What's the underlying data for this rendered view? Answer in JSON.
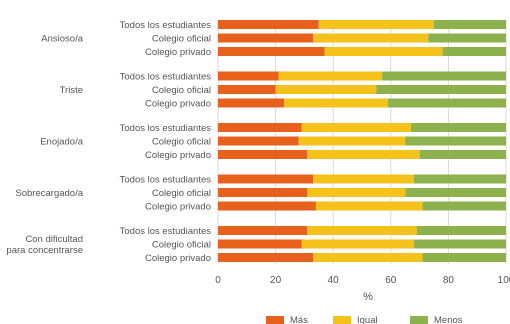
{
  "chart_data": {
    "type": "bar",
    "orientation": "horizontal",
    "stacked": true,
    "xlabel": "%",
    "xlim": [
      0,
      100
    ],
    "x_ticks": [
      "0",
      "20",
      "40",
      "60",
      "80",
      "100"
    ],
    "grid": true,
    "legend_position": "bottom",
    "colors": {
      "Más": "#E8611C",
      "Igual": "#F5C21B",
      "Menos": "#8DB14C"
    },
    "groups": [
      {
        "label": "Ansioso/a",
        "bars": [
          {
            "label": "Todos los estudiantes",
            "values": [
              35,
              40,
              25
            ]
          },
          {
            "label": "Colegio oficial",
            "values": [
              33,
              40,
              27
            ]
          },
          {
            "label": "Colegio privado",
            "values": [
              37,
              41,
              22
            ]
          }
        ]
      },
      {
        "label": "Triste",
        "bars": [
          {
            "label": "Todos los estudiantes",
            "values": [
              21,
              36,
              43
            ]
          },
          {
            "label": "Colegio oficial",
            "values": [
              20,
              35,
              45
            ]
          },
          {
            "label": "Colegio privado",
            "values": [
              23,
              36,
              41
            ]
          }
        ]
      },
      {
        "label": "Enojado/a",
        "bars": [
          {
            "label": "Todos los estudiantes",
            "values": [
              29,
              38,
              33
            ]
          },
          {
            "label": "Colegio oficial",
            "values": [
              28,
              37,
              35
            ]
          },
          {
            "label": "Colegio privado",
            "values": [
              31,
              39,
              30
            ]
          }
        ]
      },
      {
        "label": "Sobrecargado/a",
        "bars": [
          {
            "label": "Todos los estudiantes",
            "values": [
              33,
              35,
              32
            ]
          },
          {
            "label": "Colegio oficial",
            "values": [
              31,
              34,
              35
            ]
          },
          {
            "label": "Colegio privado",
            "values": [
              34,
              37,
              29
            ]
          }
        ]
      },
      {
        "label": "Con dificultad para concentrarse",
        "label_lines": [
          "Con dificultad",
          "para concentrarse"
        ],
        "bars": [
          {
            "label": "Todos los estudiantes",
            "values": [
              31,
              38,
              31
            ]
          },
          {
            "label": "Colegio oficial",
            "values": [
              29,
              39,
              32
            ]
          },
          {
            "label": "Colegio privado",
            "values": [
              33,
              38,
              29
            ]
          }
        ]
      }
    ],
    "series": [
      {
        "name": "Más"
      },
      {
        "name": "Igual"
      },
      {
        "name": "Menos"
      }
    ]
  }
}
